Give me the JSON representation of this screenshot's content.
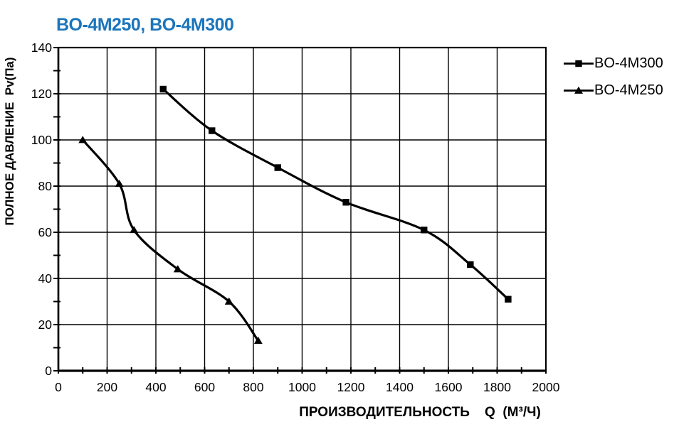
{
  "colors": {
    "title": "#1B75BC",
    "line": "#000000",
    "grid": "#000000",
    "text": "#000000",
    "background": "#FFFFFF"
  },
  "chart_data": {
    "type": "line",
    "title": "BO-4M250, BO-4M300",
    "xlabel": "ПРОИЗВОДИТЕЛЬНОСТЬ    Q  (М³/Ч)",
    "ylabel": "ПОЛНОЕ ДАВЛЕНИЕ  Pv(Па)",
    "xlim": [
      0,
      2000
    ],
    "ylim": [
      0,
      140
    ],
    "x_tick_labels": [
      "0",
      "200",
      "400",
      "600",
      "800",
      "1000",
      "1200",
      "1400",
      "1600",
      "1800",
      "2000"
    ],
    "y_tick_labels": [
      "0",
      "20",
      "40",
      "60",
      "80",
      "100",
      "120",
      "140"
    ],
    "x_minor_step": 100,
    "y_minor_step": 10,
    "grid": "on",
    "legend_position": "top-right",
    "series": [
      {
        "name": "BO-4M300",
        "marker": "square",
        "color": "#000000",
        "points": [
          [
            430,
            122
          ],
          [
            630,
            104
          ],
          [
            900,
            88
          ],
          [
            1180,
            73
          ],
          [
            1500,
            61
          ],
          [
            1690,
            46
          ],
          [
            1845,
            31
          ]
        ]
      },
      {
        "name": "BO-4M250",
        "marker": "triangle",
        "color": "#000000",
        "points": [
          [
            100,
            100
          ],
          [
            250,
            81
          ],
          [
            310,
            61
          ],
          [
            490,
            44
          ],
          [
            700,
            30
          ],
          [
            820,
            13
          ]
        ]
      }
    ]
  }
}
